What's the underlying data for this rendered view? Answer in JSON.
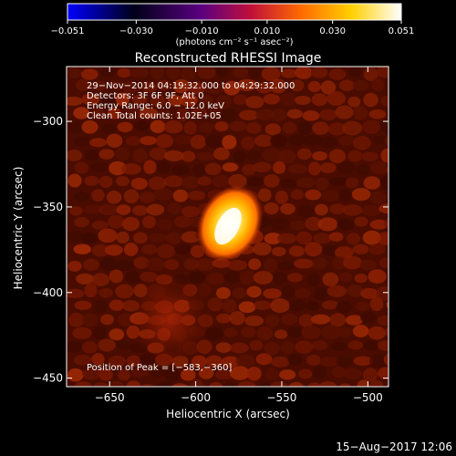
{
  "colorbar": {
    "ticks": [
      -0.051,
      -0.03,
      -0.01,
      0.01,
      0.03,
      0.051
    ],
    "tick_labels": [
      "−0.051",
      "−0.030",
      "−0.010",
      "0.010",
      "0.030",
      "0.051"
    ],
    "units_label": "(photons cm⁻² s⁻¹ asec⁻²)",
    "colormap": [
      "#0000ff",
      "#000010",
      "#5a0080",
      "#c0103a",
      "#ff6a00",
      "#ffd000",
      "#ffffff"
    ]
  },
  "chart_data": {
    "type": "heatmap",
    "title": "Reconstructed RHESSI Image",
    "xlabel": "Heliocentric X (arcsec)",
    "ylabel": "Heliocentric Y (arcsec)",
    "xlim": [
      -675,
      -488
    ],
    "ylim": [
      -455,
      -268
    ],
    "xticks": [
      -650,
      -600,
      -550,
      -500
    ],
    "yticks": [
      -300,
      -350,
      -400,
      -450
    ],
    "xtick_labels": [
      "−650",
      "−600",
      "−550",
      "−500"
    ],
    "ytick_labels": [
      "−300",
      "−350",
      "−400",
      "−450"
    ],
    "annotations": [
      "29−Nov−2014 04:19:32.000 to 04:29:32.000",
      "Detectors: 3F 6F 9F, Att 0",
      "Energy Range: 6.0 − 12.0 keV",
      "Clean     Total counts: 1.02E+05"
    ],
    "peak_label": "Position of Peak = [−583,−360]",
    "peak": {
      "x": -583,
      "y": -360,
      "value": 0.051
    },
    "vmin": -0.051,
    "vmax": 0.051
  },
  "footer": {
    "date": "15−Aug−2017 12:06"
  }
}
